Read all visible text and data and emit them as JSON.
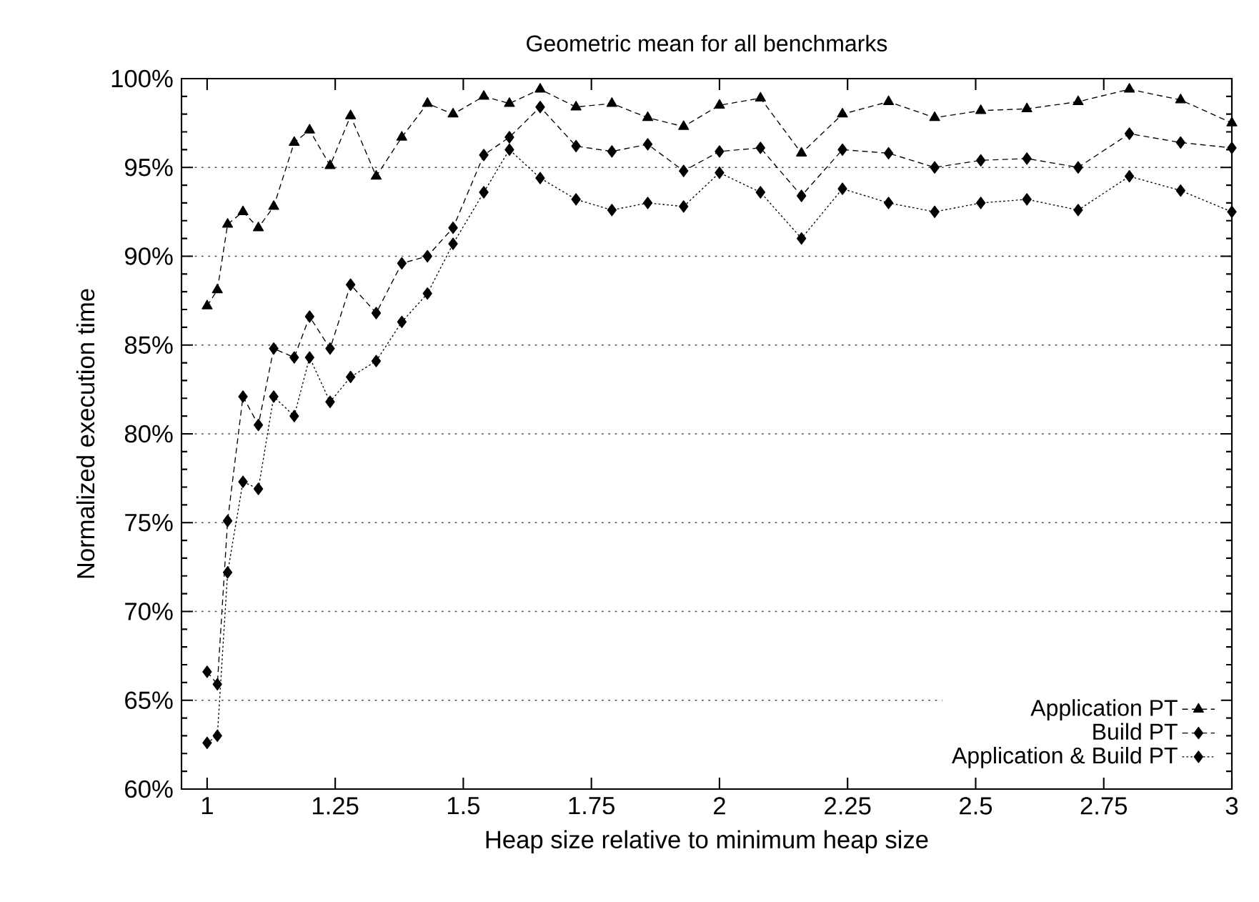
{
  "chart_data": {
    "type": "line",
    "title": "Geometric mean for all benchmarks",
    "xlabel": "Heap size relative to minimum heap size",
    "ylabel": "Normalized execution time",
    "x": [
      1.0,
      1.02,
      1.04,
      1.07,
      1.1,
      1.13,
      1.17,
      1.2,
      1.24,
      1.28,
      1.33,
      1.38,
      1.43,
      1.48,
      1.54,
      1.59,
      1.65,
      1.72,
      1.79,
      1.86,
      1.93,
      2.0,
      2.08,
      2.16,
      2.24,
      2.33,
      2.42,
      2.51,
      2.6,
      2.7,
      2.8,
      2.9,
      3.0
    ],
    "series": [
      {
        "name": "Application PT",
        "color": "#000000",
        "marker": "triangle",
        "line_style": "dashed",
        "values": [
          87.2,
          88.1,
          91.8,
          92.5,
          91.6,
          92.8,
          96.4,
          97.1,
          95.1,
          97.9,
          94.5,
          96.7,
          98.6,
          98.0,
          99.0,
          98.6,
          99.4,
          98.4,
          98.6,
          97.8,
          97.3,
          98.5,
          98.9,
          95.8,
          98.0,
          98.7,
          97.8,
          98.2,
          98.3,
          98.7,
          99.4,
          98.8,
          97.5
        ]
      },
      {
        "name": "Build PT",
        "color": "#000000",
        "marker": "diamond",
        "line_style": "dashed",
        "values": [
          66.6,
          65.9,
          75.1,
          82.1,
          80.5,
          84.8,
          84.3,
          86.6,
          84.8,
          88.4,
          86.8,
          89.6,
          90.0,
          91.6,
          95.7,
          96.7,
          98.4,
          96.2,
          95.9,
          96.3,
          94.8,
          95.9,
          96.1,
          93.4,
          96.0,
          95.8,
          95.0,
          95.4,
          95.5,
          95.0,
          96.9,
          96.4,
          96.1
        ]
      },
      {
        "name": "Application & Build PT",
        "color": "#000000",
        "marker": "diamond",
        "line_style": "dotted",
        "values": [
          62.6,
          63.0,
          72.2,
          77.3,
          76.9,
          82.1,
          81.0,
          84.3,
          81.8,
          83.2,
          84.1,
          86.3,
          87.9,
          90.7,
          93.6,
          96.0,
          94.4,
          93.2,
          92.6,
          93.0,
          92.8,
          94.7,
          93.6,
          91.0,
          93.8,
          93.0,
          92.5,
          93.0,
          93.2,
          92.6,
          94.5,
          93.7,
          92.5
        ]
      }
    ],
    "xlim": [
      0.95,
      3.0
    ],
    "ylim": [
      60,
      100
    ],
    "xticks": [
      1,
      1.25,
      1.5,
      1.75,
      2,
      2.25,
      2.5,
      2.75,
      3
    ],
    "yticks": [
      {
        "value": 60,
        "label": "60%"
      },
      {
        "value": 65,
        "label": "65%"
      },
      {
        "value": 70,
        "label": "70%"
      },
      {
        "value": 75,
        "label": "75%"
      },
      {
        "value": 80,
        "label": "80%"
      },
      {
        "value": 85,
        "label": "85%"
      },
      {
        "value": 90,
        "label": "90%"
      },
      {
        "value": 95,
        "label": "95%"
      },
      {
        "value": 100,
        "label": "100%"
      }
    ],
    "grid": "y",
    "legend": "bottom right"
  }
}
